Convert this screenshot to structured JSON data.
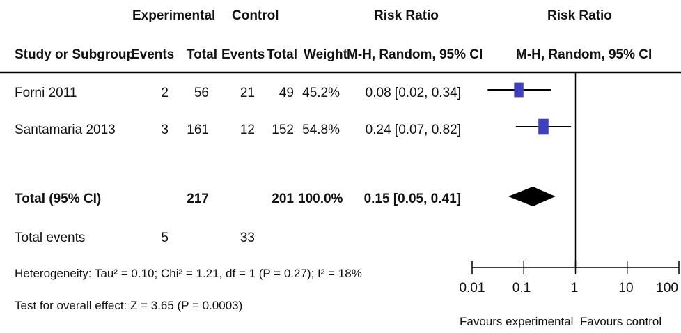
{
  "header": {
    "group1": "Experimental",
    "group2": "Control",
    "effect_col": "Risk Ratio",
    "plot_col": "Risk Ratio",
    "study_col": "Study or Subgroup",
    "events1": "Events",
    "total1": "Total",
    "events2": "Events",
    "total2": "Total",
    "weight": "Weight",
    "method": "M-H, Random, 95% CI",
    "plot_method": "M-H, Random, 95% CI"
  },
  "studies": [
    {
      "name": "Forni 2011",
      "e1": "2",
      "t1": "56",
      "e2": "21",
      "t2": "49",
      "weight": "45.2%",
      "ci_text": "0.08 [0.02, 0.34]"
    },
    {
      "name": "Santamaria 2013",
      "e1": "3",
      "t1": "161",
      "e2": "12",
      "t2": "152",
      "weight": "54.8%",
      "ci_text": "0.24 [0.07, 0.82]"
    }
  ],
  "total": {
    "name": "Total (95% CI)",
    "t1": "217",
    "t2": "201",
    "weight": "100.0%",
    "ci_text": "0.15 [0.05, 0.41]"
  },
  "total_events": {
    "label": "Total events",
    "e1": "5",
    "e2": "33"
  },
  "heterogeneity": "Heterogeneity: Tau² = 0.10; Chi² = 1.21, df = 1 (P = 0.27); I² = 18%",
  "overall_effect": "Test for overall effect: Z = 3.65 (P = 0.0003)",
  "axis": {
    "ticks": [
      "0.01",
      "0.1",
      "1",
      "10",
      "100"
    ],
    "favours_left": "Favours experimental",
    "favours_right": "Favours control"
  },
  "chart_data": {
    "type": "forest",
    "scale": "log",
    "xlim": [
      0.01,
      100
    ],
    "null_value": 1,
    "studies": [
      {
        "name": "Forni 2011",
        "estimate": 0.08,
        "lower": 0.02,
        "upper": 0.34,
        "weight": 45.2
      },
      {
        "name": "Santamaria 2013",
        "estimate": 0.24,
        "lower": 0.07,
        "upper": 0.82,
        "weight": 54.8
      }
    ],
    "pooled": {
      "estimate": 0.15,
      "lower": 0.05,
      "upper": 0.41
    },
    "colors": {
      "marker": "#3f3fbf",
      "pooled": "#000000",
      "line": "#000000"
    }
  }
}
